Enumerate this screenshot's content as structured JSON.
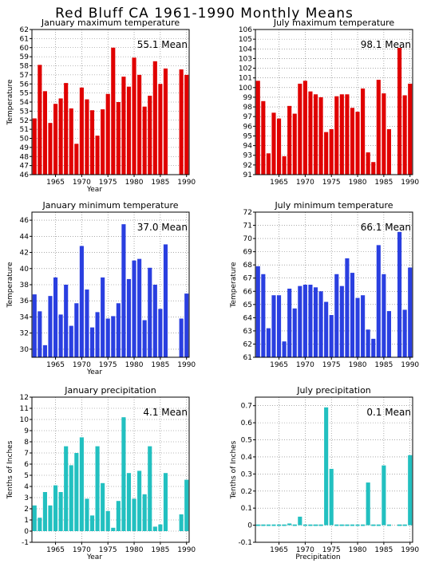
{
  "page_title": "Red Bluff CA  1961-1990 Monthly Means",
  "chart_data": [
    {
      "id": "jan-max",
      "type": "bar",
      "title": "January maximum temperature",
      "mean_label": "55.1 Mean",
      "xlabel": "Year",
      "ylabel": "Temperature",
      "xlim": [
        1960.5,
        1990.5
      ],
      "ylim": [
        46,
        62
      ],
      "yticks": [
        46,
        47,
        48,
        49,
        50,
        51,
        52,
        53,
        54,
        55,
        56,
        57,
        58,
        59,
        60,
        61,
        62
      ],
      "xticks": [
        1965,
        1970,
        1975,
        1980,
        1985,
        1990
      ],
      "color": "#e00000",
      "grid": true,
      "years": [
        1961,
        1962,
        1963,
        1964,
        1965,
        1966,
        1967,
        1968,
        1969,
        1970,
        1971,
        1972,
        1973,
        1974,
        1975,
        1976,
        1977,
        1978,
        1979,
        1980,
        1981,
        1982,
        1983,
        1984,
        1985,
        1986,
        1987,
        1988,
        1989,
        1990
      ],
      "values": [
        52.2,
        58.1,
        55.2,
        51.7,
        53.8,
        54.4,
        56.1,
        53.3,
        49.4,
        55.6,
        54.3,
        53.1,
        50.3,
        53.2,
        54.9,
        60.0,
        54.0,
        56.8,
        55.7,
        58.9,
        57.0,
        53.5,
        54.7,
        58.5,
        56.0,
        57.7,
        null,
        null,
        57.6,
        57.0
      ]
    },
    {
      "id": "jul-max",
      "type": "bar",
      "title": "July maximum temperature",
      "mean_label": "98.1 Mean",
      "xlabel": "",
      "ylabel": "",
      "xlim": [
        1960.5,
        1990.5
      ],
      "ylim": [
        91,
        106
      ],
      "yticks": [
        91,
        92,
        93,
        94,
        95,
        96,
        97,
        98,
        99,
        100,
        101,
        102,
        103,
        104,
        105,
        106
      ],
      "xticks": [
        1965,
        1970,
        1975,
        1980,
        1985,
        1990
      ],
      "color": "#e00000",
      "grid": true,
      "years": [
        1961,
        1962,
        1963,
        1964,
        1965,
        1966,
        1967,
        1968,
        1969,
        1970,
        1971,
        1972,
        1973,
        1974,
        1975,
        1976,
        1977,
        1978,
        1979,
        1980,
        1981,
        1982,
        1983,
        1984,
        1985,
        1986,
        1987,
        1988,
        1989,
        1990
      ],
      "values": [
        100.7,
        98.6,
        93.2,
        97.4,
        96.8,
        92.9,
        98.1,
        97.3,
        100.4,
        100.7,
        99.6,
        99.3,
        99.0,
        95.4,
        95.7,
        99.1,
        99.3,
        99.3,
        97.9,
        97.5,
        99.9,
        93.3,
        92.3,
        100.8,
        99.4,
        95.7,
        null,
        104.1,
        99.2,
        100.4
      ]
    },
    {
      "id": "jan-min",
      "type": "bar",
      "title": "January minimum temperature",
      "mean_label": "37.0 Mean",
      "xlabel": "Year",
      "ylabel": "Temperature",
      "xlim": [
        1960.5,
        1990.5
      ],
      "ylim": [
        29,
        47
      ],
      "yticks": [
        30,
        32,
        34,
        36,
        38,
        40,
        42,
        44,
        46
      ],
      "xticks": [
        1965,
        1970,
        1975,
        1980,
        1985,
        1990
      ],
      "color": "#2a3fe0",
      "grid": true,
      "years": [
        1961,
        1962,
        1963,
        1964,
        1965,
        1966,
        1967,
        1968,
        1969,
        1970,
        1971,
        1972,
        1973,
        1974,
        1975,
        1976,
        1977,
        1978,
        1979,
        1980,
        1981,
        1982,
        1983,
        1984,
        1985,
        1986,
        1987,
        1988,
        1989,
        1990
      ],
      "values": [
        36.8,
        34.7,
        30.5,
        36.6,
        38.9,
        34.3,
        38.0,
        32.9,
        35.7,
        42.8,
        37.4,
        32.7,
        34.6,
        38.9,
        33.8,
        34.1,
        35.7,
        45.5,
        38.7,
        41.0,
        41.2,
        33.6,
        40.1,
        38.0,
        35.0,
        43.0,
        null,
        null,
        33.8,
        36.9
      ]
    },
    {
      "id": "jul-min",
      "type": "bar",
      "title": "July minimum temperature",
      "mean_label": "66.1 Mean",
      "xlabel": "",
      "ylabel": "Temperature",
      "xlim": [
        1960.5,
        1990.5
      ],
      "ylim": [
        61,
        72
      ],
      "yticks": [
        61,
        62,
        63,
        64,
        65,
        66,
        67,
        68,
        69,
        70,
        71,
        72
      ],
      "xticks": [
        1965,
        1970,
        1975,
        1980,
        1985,
        1990
      ],
      "color": "#2a3fe0",
      "grid": true,
      "years": [
        1961,
        1962,
        1963,
        1964,
        1965,
        1966,
        1967,
        1968,
        1969,
        1970,
        1971,
        1972,
        1973,
        1974,
        1975,
        1976,
        1977,
        1978,
        1979,
        1980,
        1981,
        1982,
        1983,
        1984,
        1985,
        1986,
        1987,
        1988,
        1989,
        1990
      ],
      "values": [
        67.9,
        67.3,
        63.2,
        65.7,
        65.7,
        62.2,
        66.2,
        64.7,
        66.4,
        66.5,
        66.5,
        66.3,
        66.0,
        65.2,
        64.2,
        67.3,
        66.4,
        68.5,
        67.4,
        65.5,
        65.7,
        63.1,
        62.4,
        69.5,
        67.3,
        64.5,
        null,
        70.5,
        64.6,
        67.8
      ]
    },
    {
      "id": "jan-precip",
      "type": "bar",
      "title": "January precipitation",
      "mean_label": "4.1 Mean",
      "xlabel": "Year",
      "ylabel": "Tenths of Inches",
      "xlim": [
        1960.5,
        1990.5
      ],
      "ylim": [
        -1,
        12
      ],
      "yticks": [
        -1,
        0,
        1,
        2,
        3,
        4,
        5,
        6,
        7,
        8,
        9,
        10,
        11,
        12
      ],
      "xticks": [
        1965,
        1970,
        1975,
        1980,
        1985,
        1990
      ],
      "color": "#22c0c0",
      "grid": true,
      "years": [
        1961,
        1962,
        1963,
        1964,
        1965,
        1966,
        1967,
        1968,
        1969,
        1970,
        1971,
        1972,
        1973,
        1974,
        1975,
        1976,
        1977,
        1978,
        1979,
        1980,
        1981,
        1982,
        1983,
        1984,
        1985,
        1986,
        1987,
        1988,
        1989,
        1990
      ],
      "values": [
        2.3,
        1.2,
        3.5,
        2.3,
        4.1,
        3.5,
        7.6,
        5.9,
        7.0,
        8.4,
        2.9,
        1.4,
        7.6,
        4.3,
        1.8,
        0.3,
        2.7,
        10.2,
        5.2,
        2.9,
        5.4,
        3.3,
        7.6,
        0.4,
        0.6,
        5.2,
        null,
        null,
        1.5,
        4.6
      ]
    },
    {
      "id": "jul-precip",
      "type": "bar",
      "title": "July precipitation",
      "mean_label": "0.1 Mean",
      "xlabel": "Precipitation",
      "ylabel": "Tenths of Inches",
      "xlim": [
        1960.5,
        1990.5
      ],
      "ylim": [
        -0.1,
        0.75
      ],
      "yticks": [
        -0.1,
        0,
        0.1,
        0.2,
        0.3,
        0.4,
        0.5,
        0.6,
        0.7
      ],
      "xticks": [
        1965,
        1970,
        1975,
        1980,
        1985,
        1990
      ],
      "color": "#22c0c0",
      "grid": true,
      "years": [
        1961,
        1962,
        1963,
        1964,
        1965,
        1966,
        1967,
        1968,
        1969,
        1970,
        1971,
        1972,
        1973,
        1974,
        1975,
        1976,
        1977,
        1978,
        1979,
        1980,
        1981,
        1982,
        1983,
        1984,
        1985,
        1986,
        1987,
        1988,
        1989,
        1990
      ],
      "values": [
        0,
        0,
        0,
        0,
        0,
        0,
        0.01,
        0,
        0.05,
        0,
        0,
        0,
        0,
        0.69,
        0.33,
        0,
        0,
        0,
        0,
        0,
        0,
        0.25,
        0,
        0,
        0.35,
        0,
        null,
        0,
        0,
        0.41
      ]
    }
  ]
}
